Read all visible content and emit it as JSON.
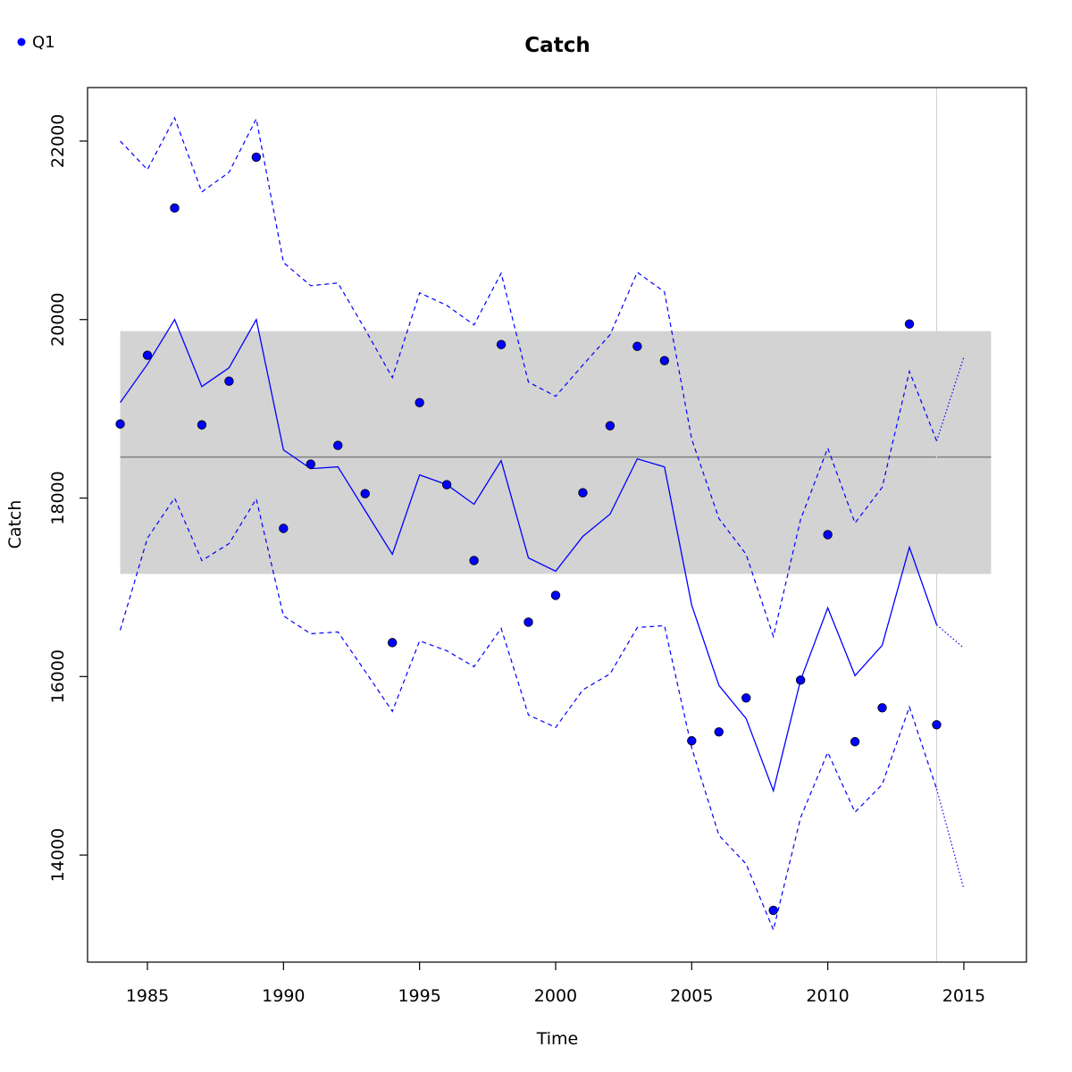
{
  "chart_data": {
    "type": "line",
    "title": "Catch",
    "xlabel": "Time",
    "ylabel": "Catch",
    "xlim": [
      1982.8,
      2017.3
    ],
    "ylim": [
      12800,
      22600
    ],
    "x_ticks": [
      1985,
      1990,
      1995,
      2000,
      2005,
      2010,
      2015
    ],
    "y_ticks": [
      14000,
      16000,
      18000,
      20000,
      22000
    ],
    "legend": {
      "position": "top-left",
      "entries": [
        {
          "label": "Q1",
          "color": "#0000ff",
          "marker": "circle"
        }
      ]
    },
    "reference": {
      "mean": 18460,
      "band": [
        17150,
        19870
      ],
      "x_range": [
        1984,
        2016
      ],
      "band_color": "#d3d3d3",
      "line_color": "#808080"
    },
    "vertical_marker": {
      "x": 2014,
      "color": "#d3d3d3"
    },
    "observed": {
      "name": "Q1",
      "color": "#0000ff",
      "x": [
        1984,
        1985,
        1986,
        1987,
        1988,
        1989,
        1990,
        1991,
        1992,
        1993,
        1994,
        1995,
        1996,
        1997,
        1998,
        1999,
        2000,
        2001,
        2002,
        2003,
        2004,
        2005,
        2006,
        2007,
        2008,
        2009,
        2010,
        2011,
        2012,
        2013,
        2014
      ],
      "y": [
        18830,
        19600,
        21250,
        18820,
        19310,
        21820,
        17660,
        18380,
        18590,
        18050,
        16380,
        19070,
        18150,
        17300,
        19720,
        16610,
        16910,
        18060,
        18810,
        19700,
        19540,
        15280,
        15380,
        15760,
        13380,
        15960,
        17590,
        15270,
        15650,
        19950,
        15460
      ]
    },
    "fit": {
      "color": "#0000ff",
      "x": [
        1984,
        1985,
        1986,
        1987,
        1988,
        1989,
        1990,
        1991,
        1992,
        1993,
        1994,
        1995,
        1996,
        1997,
        1998,
        1999,
        2000,
        2001,
        2002,
        2003,
        2004,
        2005,
        2006,
        2007,
        2008,
        2009,
        2010,
        2011,
        2012,
        2013,
        2014
      ],
      "y": [
        19070,
        19500,
        20000,
        19250,
        19460,
        20000,
        18540,
        18330,
        18350,
        17860,
        17370,
        18260,
        18150,
        17930,
        18420,
        17330,
        17180,
        17570,
        17820,
        18440,
        18350,
        16800,
        15900,
        15530,
        14720,
        15960,
        16770,
        16010,
        16350,
        17450,
        16580
      ]
    },
    "fit_upper": {
      "color": "#0000ff",
      "x": [
        1984,
        1985,
        1986,
        1987,
        1988,
        1989,
        1990,
        1991,
        1992,
        1993,
        1994,
        1995,
        1996,
        1997,
        1998,
        1999,
        2000,
        2001,
        2002,
        2003,
        2004,
        2005,
        2006,
        2007,
        2008,
        2009,
        2010,
        2011,
        2012,
        2013,
        2014
      ],
      "y": [
        22000,
        21680,
        22260,
        21430,
        21650,
        22250,
        20640,
        20380,
        20410,
        19890,
        19350,
        20300,
        20160,
        19940,
        20520,
        19300,
        19140,
        19490,
        19830,
        20530,
        20310,
        18660,
        17770,
        17370,
        16450,
        17760,
        18560,
        17720,
        18120,
        19420,
        18640
      ]
    },
    "fit_lower": {
      "color": "#0000ff",
      "x": [
        1984,
        1985,
        1986,
        1987,
        1988,
        1989,
        1990,
        1991,
        1992,
        1993,
        1994,
        1995,
        1996,
        1997,
        1998,
        1999,
        2000,
        2001,
        2002,
        2003,
        2004,
        2005,
        2006,
        2007,
        2008,
        2009,
        2010,
        2011,
        2012,
        2013,
        2014
      ],
      "y": [
        16520,
        17550,
        18000,
        17300,
        17490,
        17990,
        16680,
        16480,
        16500,
        16060,
        15610,
        16400,
        16290,
        16110,
        16540,
        15570,
        15430,
        15850,
        16030,
        16550,
        16570,
        15200,
        14220,
        13900,
        13160,
        14420,
        15150,
        14480,
        14790,
        15660,
        14740
      ]
    },
    "forecast": {
      "style": "dotted",
      "color": "#0000ff",
      "x": [
        2014,
        2015
      ],
      "y": [
        16580,
        16320
      ],
      "upper": [
        18640,
        19580
      ],
      "lower": [
        14740,
        13620
      ]
    }
  }
}
